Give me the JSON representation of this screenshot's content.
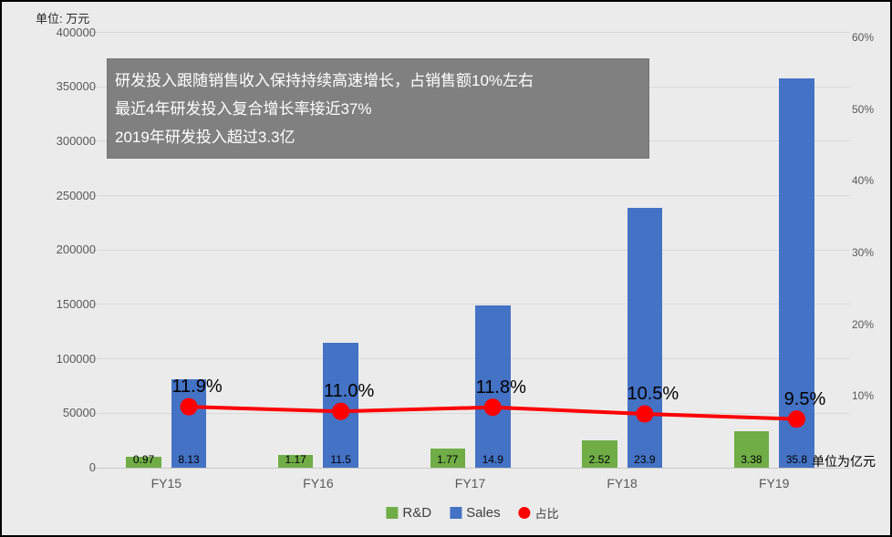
{
  "unit_title": "单位: 万元",
  "axis_note": "单位为亿元",
  "annotation": {
    "line1": "研发投入跟随销售收入保持持续高速增长，占销售额10%左右",
    "line2": "最近4年研发投入复合增长率接近37%",
    "line3": "2019年研发投入超过3.3亿"
  },
  "legend": {
    "rnd": "R&D",
    "sales": "Sales",
    "ratio": "占比"
  },
  "colors": {
    "background": "#EBEBEB",
    "gridline": "#D9D9D9",
    "rnd_green": "#70AD47",
    "sales_blue": "#4472C4",
    "ratio_red": "#FF0000",
    "annotation_gray": "#808080",
    "tick_text": "#595959"
  },
  "chart_data": {
    "type": "bar",
    "subtype": "combo-bar-line",
    "title": "",
    "categories": [
      "FY15",
      "FY16",
      "FY17",
      "FY18",
      "FY19"
    ],
    "series": [
      {
        "name": "R&D",
        "type": "bar",
        "unit": "亿元",
        "color": "#70AD47",
        "values": [
          0.97,
          1.17,
          1.77,
          2.52,
          3.38
        ],
        "labels": [
          "0.97",
          "1.17",
          "1.77",
          "2.52",
          "3.38"
        ]
      },
      {
        "name": "Sales",
        "type": "bar",
        "unit": "亿元",
        "color": "#4472C4",
        "values": [
          8.13,
          11.5,
          14.9,
          23.9,
          35.8
        ],
        "labels": [
          "8.13",
          "11.5",
          "14.9",
          "23.9",
          "35.8"
        ]
      },
      {
        "name": "占比",
        "type": "line",
        "unit": "%",
        "color": "#FF0000",
        "values": [
          11.9,
          11.0,
          11.8,
          10.5,
          9.5
        ],
        "labels": [
          "11.9%",
          "11.0%",
          "11.8%",
          "10.5%",
          "9.5%"
        ]
      }
    ],
    "left_axis": {
      "unit": "万元",
      "min": 0,
      "max": 400000,
      "step": 50000,
      "ticks": [
        "0",
        "50000",
        "100000",
        "150000",
        "200000",
        "250000",
        "300000",
        "350000",
        "400000"
      ]
    },
    "right_axis": {
      "unit": "%",
      "ticks": [
        "10%",
        "20%",
        "30%",
        "40%",
        "50%",
        "60%"
      ]
    },
    "grid": true,
    "legend_position": "bottom"
  }
}
